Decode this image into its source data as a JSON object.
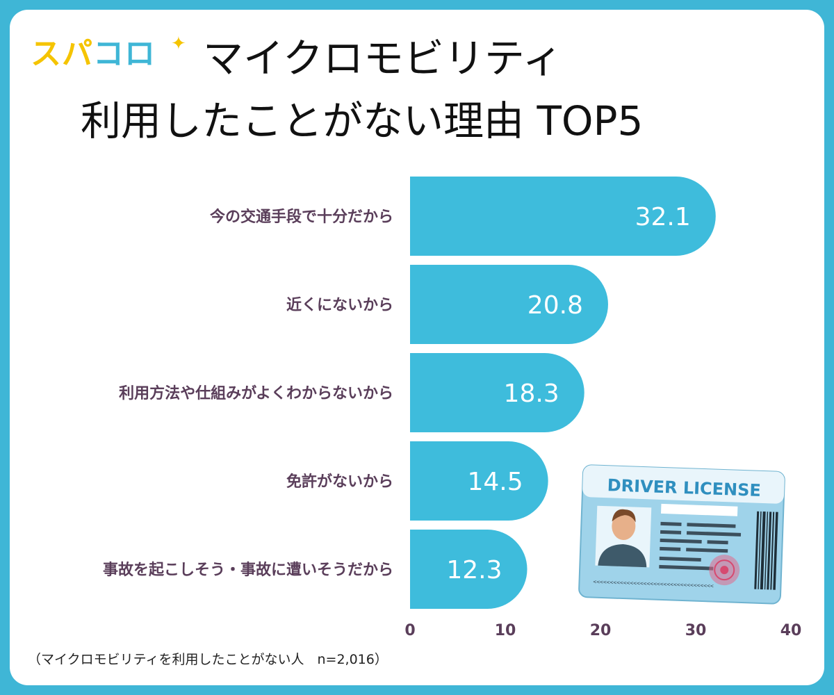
{
  "brand": {
    "logo_part1": "スパ",
    "logo_part2": "コロ",
    "sparkle_icon": "sparkle-icon",
    "yellow": "#f5c400",
    "blue": "#3fb6d6"
  },
  "title": {
    "line1": "マイクロモビリティ",
    "line2": "利用したことがない理由 TOP5"
  },
  "footnote": "（マイクロモビリティを利用したことがない人　n=2,016）",
  "license_card": {
    "heading": "DRIVER LICENSE",
    "mrz": "<<<<<<<<<<<<<<<<<<<<<<<<<<<<<<<<<<<<"
  },
  "chart_data": {
    "type": "bar",
    "orientation": "horizontal",
    "categories": [
      "今の交通手段で十分だから",
      "近くにないから",
      "利用方法や仕組みがよくわからないから",
      "免許がないから",
      "事故を起こしそう・事故に遭いそうだから"
    ],
    "values": [
      32.1,
      20.8,
      18.3,
      14.5,
      12.3
    ],
    "value_labels": [
      "32.1",
      "20.8",
      "18.3",
      "14.5",
      "12.3"
    ],
    "xlim": [
      0,
      40
    ],
    "xticks": [
      "0",
      "10",
      "20",
      "30",
      "40"
    ],
    "bar_color": "#3ebcdc",
    "label_color": "#5a3e5a",
    "grid": false
  }
}
